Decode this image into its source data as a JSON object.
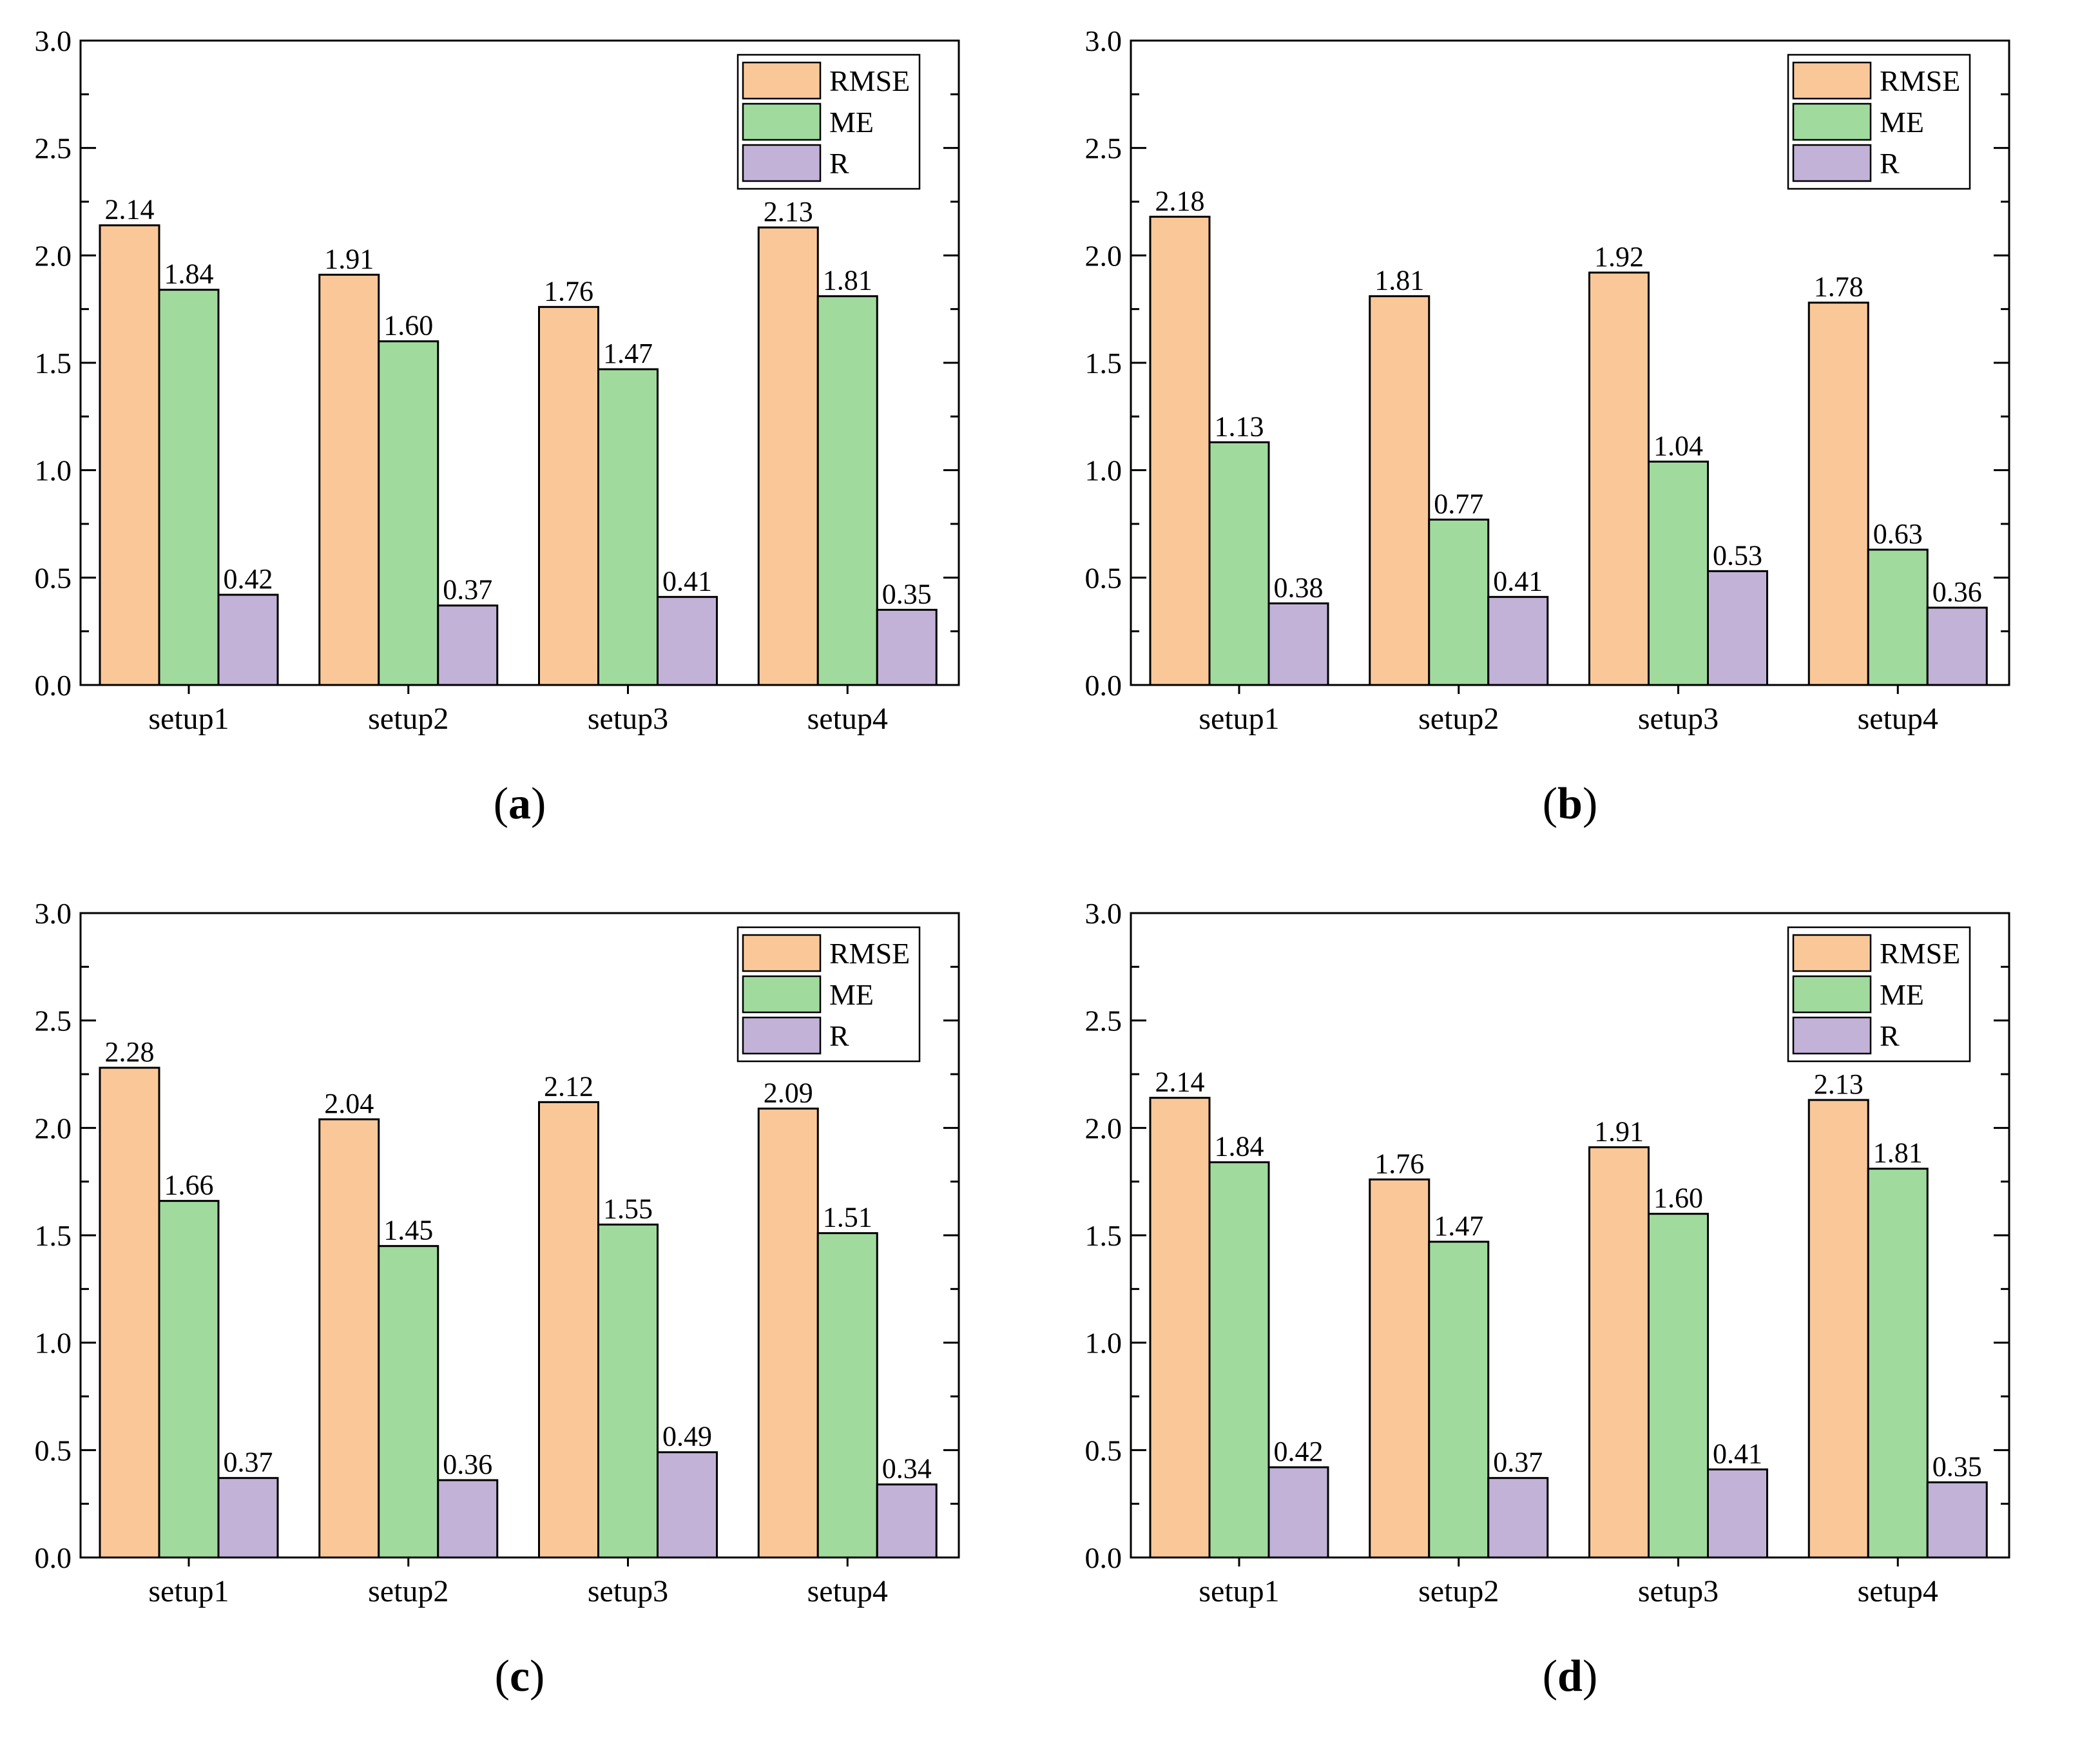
{
  "colors": {
    "RMSE": "#FAC898",
    "ME": "#A0DB9D",
    "R": "#C2B2D8",
    "axis": "#000000"
  },
  "chart_data": [
    {
      "type": "bar",
      "caption": "a",
      "categories": [
        "setup1",
        "setup2",
        "setup3",
        "setup4"
      ],
      "series": [
        {
          "name": "RMSE",
          "values": [
            2.14,
            1.91,
            1.76,
            2.13
          ],
          "labels": [
            "2.14",
            "1.91",
            "1.76",
            "2.13"
          ]
        },
        {
          "name": "ME",
          "values": [
            1.84,
            1.6,
            1.47,
            1.81
          ],
          "labels": [
            "1.84",
            "1.60",
            "1.47",
            "1.81"
          ]
        },
        {
          "name": "R",
          "values": [
            0.42,
            0.37,
            0.41,
            0.35
          ],
          "labels": [
            "0.42",
            "0.37",
            "0.41",
            "0.35"
          ]
        }
      ],
      "ylim": [
        0,
        3.0
      ],
      "yticks": [
        "0.0",
        "0.5",
        "1.0",
        "1.5",
        "2.0",
        "2.5",
        "3.0"
      ],
      "legend_position": "top-right"
    },
    {
      "type": "bar",
      "caption": "b",
      "categories": [
        "setup1",
        "setup2",
        "setup3",
        "setup4"
      ],
      "series": [
        {
          "name": "RMSE",
          "values": [
            2.18,
            1.81,
            1.92,
            1.78
          ],
          "labels": [
            "2.18",
            "1.81",
            "1.92",
            "1.78"
          ]
        },
        {
          "name": "ME",
          "values": [
            1.13,
            0.77,
            1.04,
            0.63
          ],
          "labels": [
            "1.13",
            "0.77",
            "1.04",
            "0.63"
          ]
        },
        {
          "name": "R",
          "values": [
            0.38,
            0.41,
            0.53,
            0.36
          ],
          "labels": [
            "0.38",
            "0.41",
            "0.53",
            "0.36"
          ]
        }
      ],
      "ylim": [
        0,
        3.0
      ],
      "yticks": [
        "0.0",
        "0.5",
        "1.0",
        "1.5",
        "2.0",
        "2.5",
        "3.0"
      ],
      "legend_position": "top-right"
    },
    {
      "type": "bar",
      "caption": "c",
      "categories": [
        "setup1",
        "setup2",
        "setup3",
        "setup4"
      ],
      "series": [
        {
          "name": "RMSE",
          "values": [
            2.28,
            2.04,
            2.12,
            2.09
          ],
          "labels": [
            "2.28",
            "2.04",
            "2.12",
            "2.09"
          ]
        },
        {
          "name": "ME",
          "values": [
            1.66,
            1.45,
            1.55,
            1.51
          ],
          "labels": [
            "1.66",
            "1.45",
            "1.55",
            "1.51"
          ]
        },
        {
          "name": "R",
          "values": [
            0.37,
            0.36,
            0.49,
            0.34
          ],
          "labels": [
            "0.37",
            "0.36",
            "0.49",
            "0.34"
          ]
        }
      ],
      "ylim": [
        0,
        3.0
      ],
      "yticks": [
        "0.0",
        "0.5",
        "1.0",
        "1.5",
        "2.0",
        "2.5",
        "3.0"
      ],
      "legend_position": "top-right"
    },
    {
      "type": "bar",
      "caption": "d",
      "categories": [
        "setup1",
        "setup2",
        "setup3",
        "setup4"
      ],
      "series": [
        {
          "name": "RMSE",
          "values": [
            2.14,
            1.76,
            1.91,
            2.13
          ],
          "labels": [
            "2.14",
            "1.76",
            "1.91",
            "2.13"
          ]
        },
        {
          "name": "ME",
          "values": [
            1.84,
            1.47,
            1.6,
            1.81
          ],
          "labels": [
            "1.84",
            "1.47",
            "1.60",
            "1.81"
          ]
        },
        {
          "name": "R",
          "values": [
            0.42,
            0.37,
            0.41,
            0.35
          ],
          "labels": [
            "0.42",
            "0.37",
            "0.41",
            "0.35"
          ]
        }
      ],
      "ylim": [
        0,
        3.0
      ],
      "yticks": [
        "0.0",
        "0.5",
        "1.0",
        "1.5",
        "2.0",
        "2.5",
        "3.0"
      ],
      "legend_position": "top-right"
    }
  ]
}
